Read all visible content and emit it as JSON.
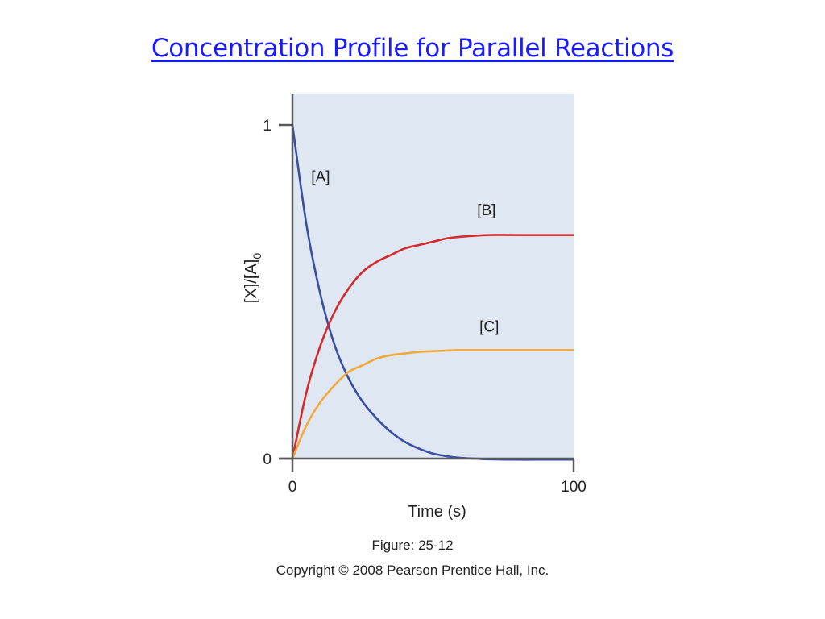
{
  "slide": {
    "title": "Concentration Profile for Parallel Reactions",
    "figure_label": "Figure: 25-12",
    "copyright": "Copyright © 2008 Pearson Prentice Hall, Inc."
  },
  "colors": {
    "plot_background": "#dfe7f2",
    "axis": "#5a5a5a",
    "series_A": "#3a4fa3",
    "series_B": "#d42a2a",
    "series_C": "#f2a93b",
    "title": "#1a1aff"
  },
  "chart_data": {
    "type": "line",
    "title": "",
    "xlabel": "Time (s)",
    "ylabel": "[X]/[A]",
    "ylabel_subscript": "0",
    "xlim": [
      0,
      100
    ],
    "ylim": [
      0,
      1.1
    ],
    "xticks": [
      0,
      100
    ],
    "yticks": [
      0,
      1
    ],
    "grid": false,
    "series": [
      {
        "name": "[A]",
        "color_key": "series_A",
        "x": [
          0,
          5,
          10,
          15,
          20,
          25,
          30,
          35,
          40,
          45,
          50,
          55,
          60,
          65,
          70,
          80,
          90,
          100
        ],
        "y": [
          1.0,
          0.7,
          0.49,
          0.34,
          0.24,
          0.17,
          0.12,
          0.08,
          0.05,
          0.03,
          0.015,
          0.007,
          0.002,
          0.0,
          -0.002,
          -0.003,
          -0.003,
          -0.003
        ]
      },
      {
        "name": "[B]",
        "x": [
          0,
          5,
          10,
          15,
          20,
          25,
          30,
          35,
          40,
          45,
          50,
          55,
          60,
          70,
          80,
          90,
          100
        ],
        "y": [
          0.0,
          0.2,
          0.34,
          0.44,
          0.51,
          0.56,
          0.59,
          0.61,
          0.63,
          0.64,
          0.65,
          0.66,
          0.665,
          0.67,
          0.67,
          0.67,
          0.67
        ]
      },
      {
        "name": "[C]",
        "x": [
          0,
          5,
          10,
          15,
          20,
          25,
          30,
          35,
          40,
          45,
          50,
          55,
          60,
          70,
          80,
          90,
          100
        ],
        "y": [
          0.0,
          0.1,
          0.17,
          0.22,
          0.26,
          0.28,
          0.3,
          0.31,
          0.315,
          0.32,
          0.322,
          0.324,
          0.325,
          0.325,
          0.325,
          0.325,
          0.325
        ]
      }
    ],
    "series_labels": [
      {
        "text": "[A]",
        "x": 10,
        "y": 0.83
      },
      {
        "text": "[B]",
        "x": 69,
        "y": 0.73
      },
      {
        "text": "[C]",
        "x": 70,
        "y": 0.38
      }
    ]
  }
}
